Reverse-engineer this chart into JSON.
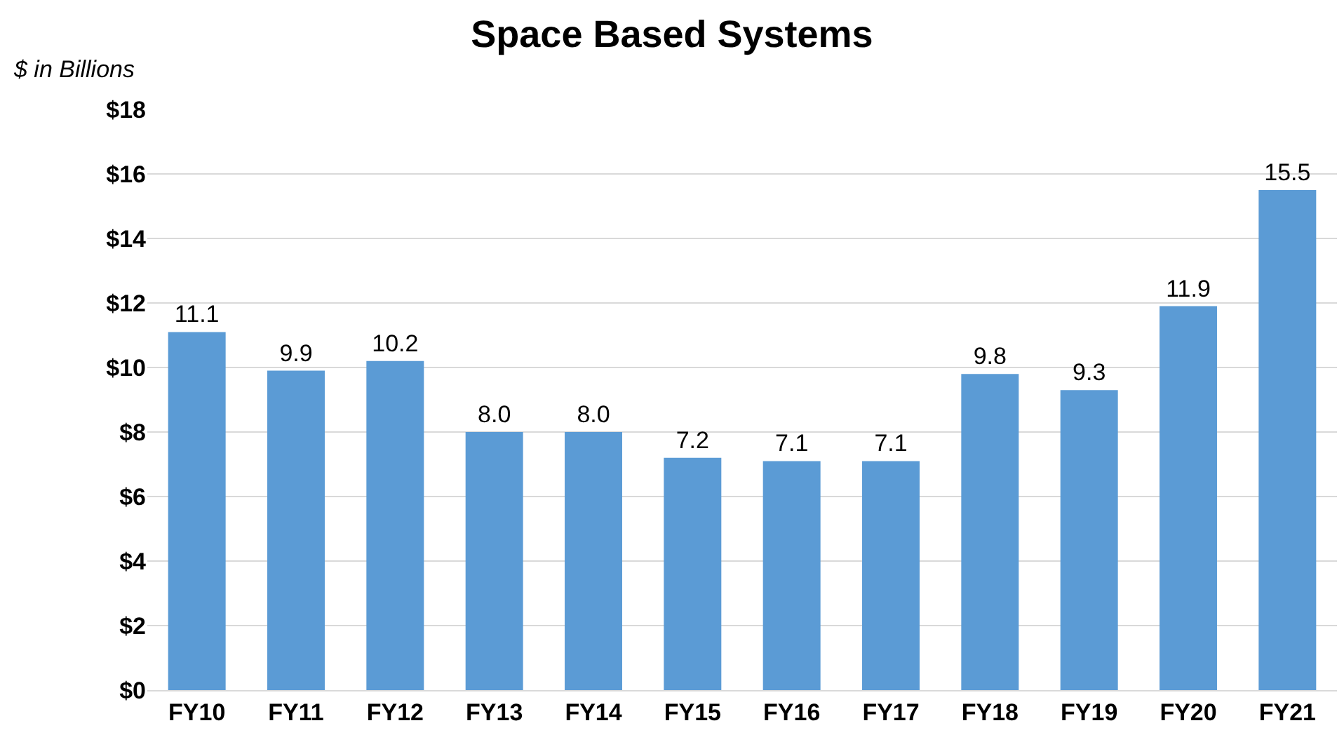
{
  "chart_data": {
    "type": "bar",
    "title": "Space Based Systems",
    "ylabel": "$ in Billions",
    "categories": [
      "FY10",
      "FY11",
      "FY12",
      "FY13",
      "FY14",
      "FY15",
      "FY16",
      "FY17",
      "FY18",
      "FY19",
      "FY20",
      "FY21"
    ],
    "values": [
      11.1,
      9.9,
      10.2,
      8.0,
      8.0,
      7.2,
      7.1,
      7.1,
      9.8,
      9.3,
      11.9,
      15.5
    ],
    "value_labels": [
      "11.1",
      "9.9",
      "10.2",
      "8.0",
      "8.0",
      "7.2",
      "7.1",
      "7.1",
      "9.8",
      "9.3",
      "11.9",
      "15.5"
    ],
    "color": "#5b9bd5",
    "ylim": [
      0,
      18
    ],
    "yticks": [
      {
        "value": 0,
        "label": "$0"
      },
      {
        "value": 2,
        "label": "$2"
      },
      {
        "value": 4,
        "label": "$4"
      },
      {
        "value": 6,
        "label": "$6"
      },
      {
        "value": 8,
        "label": "$8"
      },
      {
        "value": 10,
        "label": "$10"
      },
      {
        "value": 12,
        "label": "$12"
      },
      {
        "value": 14,
        "label": "$14"
      },
      {
        "value": 16,
        "label": "$16"
      },
      {
        "value": 18,
        "label": "$18"
      }
    ],
    "grid": "y",
    "legend": false
  }
}
